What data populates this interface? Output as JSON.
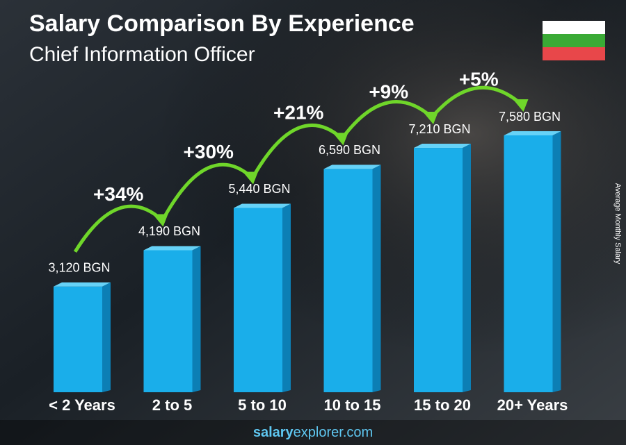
{
  "chart_data": {
    "type": "bar",
    "title": "Salary Comparison By Experience",
    "subtitle": "Chief Information Officer",
    "y_label": "Average Monthly Salary",
    "categories": [
      "< 2 Years",
      "2 to 5",
      "5 to 10",
      "10 to 15",
      "15 to 20",
      "20+ Years"
    ],
    "values": [
      3120,
      4190,
      5440,
      6590,
      7210,
      7580
    ],
    "value_labels": [
      "3,120 BGN",
      "4,190 BGN",
      "5,440 BGN",
      "6,590 BGN",
      "7,210 BGN",
      "7,580 BGN"
    ],
    "annotations": [
      "+34%",
      "+30%",
      "+21%",
      "+9%",
      "+5%"
    ],
    "color": "#1aaeea",
    "footer": {
      "bold": "salary",
      "rest": "explorer.com"
    }
  }
}
